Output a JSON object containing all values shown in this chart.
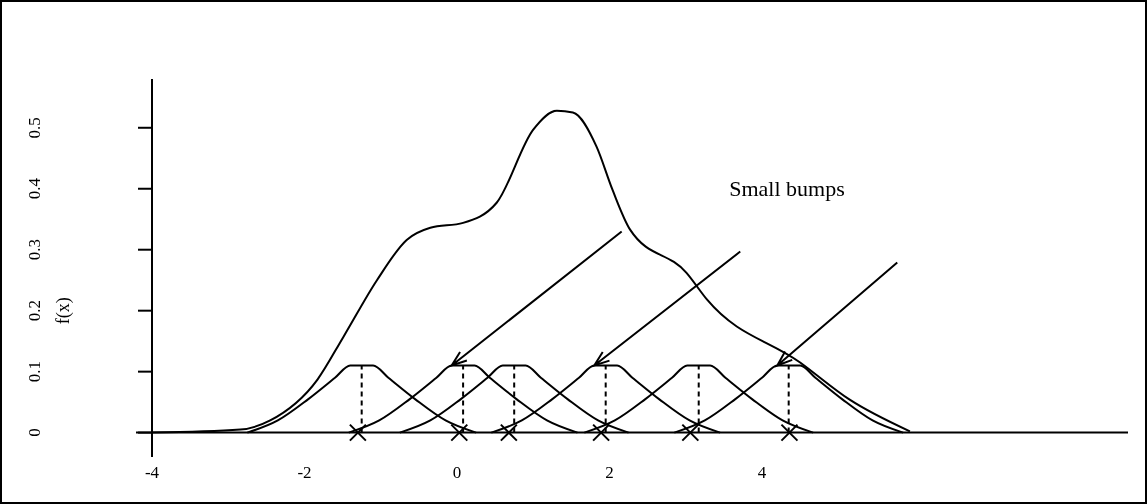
{
  "chart_data": {
    "type": "line",
    "ylabel": "f(x)",
    "annotations": [
      "Small bumps"
    ],
    "xlim": [
      -4,
      8.8
    ],
    "ylim": [
      -0.04,
      0.58
    ],
    "xticks": [
      -4,
      -2,
      0,
      2,
      4
    ],
    "yticks": [
      0,
      0.1,
      0.2,
      0.3,
      0.4,
      0.5
    ],
    "grid": false,
    "series": [
      {
        "color": "#000000",
        "line_style": "solid",
        "marker": "none",
        "x": [
          -4,
          -2.84,
          -2.45,
          -1.83,
          -1.49,
          -1.05,
          -0.66,
          -0.35,
          0.08,
          0.52,
          1.0,
          1.31,
          1.52,
          1.83,
          2.04,
          2.27,
          3.01,
          3.28,
          4.5,
          5.15,
          5.94
        ],
        "values": [
          0,
          0.005,
          0.02,
          0.087,
          0.157,
          0.25,
          0.316,
          0.336,
          0.344,
          0.377,
          0.497,
          0.528,
          0.525,
          0.469,
          0.398,
          0.333,
          0.262,
          0.218,
          0.115,
          0.054,
          0.002
        ]
      },
      {
        "color": "#000000",
        "line_style": "solid",
        "marker": "none",
        "x": [
          -2.75,
          -2.35,
          -1.95,
          -1.6,
          -1.4,
          -1.1,
          -0.9,
          -0.55,
          -0.15,
          0.25
        ],
        "values": [
          0,
          0.02,
          0.055,
          0.09,
          0.11,
          0.11,
          0.09,
          0.055,
          0.02,
          0
        ]
      },
      {
        "color": "#000000",
        "line_style": "solid",
        "marker": "none",
        "x": [
          -1.42,
          -1.02,
          -0.62,
          -0.27,
          -0.07,
          0.23,
          0.43,
          0.78,
          1.18,
          1.58
        ],
        "values": [
          0,
          0.02,
          0.055,
          0.09,
          0.11,
          0.11,
          0.09,
          0.055,
          0.02,
          0
        ]
      },
      {
        "color": "#000000",
        "line_style": "solid",
        "marker": "none",
        "x": [
          -0.75,
          -0.35,
          0.05,
          0.4,
          0.6,
          0.9,
          1.1,
          1.45,
          1.85,
          2.25
        ],
        "values": [
          0,
          0.02,
          0.055,
          0.09,
          0.11,
          0.11,
          0.09,
          0.055,
          0.02,
          0
        ]
      },
      {
        "color": "#000000",
        "line_style": "solid",
        "marker": "none",
        "x": [
          0.45,
          0.85,
          1.25,
          1.6,
          1.8,
          2.1,
          2.3,
          2.65,
          3.05,
          3.45
        ],
        "values": [
          0,
          0.02,
          0.055,
          0.09,
          0.11,
          0.11,
          0.09,
          0.055,
          0.02,
          0
        ]
      },
      {
        "color": "#000000",
        "line_style": "solid",
        "marker": "none",
        "x": [
          1.67,
          2.07,
          2.47,
          2.82,
          3.02,
          3.32,
          3.52,
          3.87,
          4.27,
          4.67
        ],
        "values": [
          0,
          0.02,
          0.055,
          0.09,
          0.11,
          0.11,
          0.09,
          0.055,
          0.02,
          0
        ]
      },
      {
        "color": "#000000",
        "line_style": "solid",
        "marker": "none",
        "x": [
          2.85,
          3.25,
          3.65,
          4.0,
          4.2,
          4.5,
          4.7,
          5.05,
          5.45,
          5.85
        ],
        "values": [
          0,
          0.02,
          0.055,
          0.09,
          0.11,
          0.11,
          0.09,
          0.055,
          0.02,
          0
        ]
      },
      {
        "color": "#000000",
        "line_style": "dashed",
        "marker": "none",
        "x": [
          -1.25,
          -1.25
        ],
        "values": [
          0,
          0.11
        ]
      },
      {
        "color": "#000000",
        "line_style": "dashed",
        "marker": "none",
        "x": [
          0.08,
          0.08
        ],
        "values": [
          0,
          0.11
        ]
      },
      {
        "color": "#000000",
        "line_style": "dashed",
        "marker": "none",
        "x": [
          0.75,
          0.75
        ],
        "values": [
          0,
          0.11
        ]
      },
      {
        "color": "#000000",
        "line_style": "dashed",
        "marker": "none",
        "x": [
          1.95,
          1.95
        ],
        "values": [
          0,
          0.11
        ]
      },
      {
        "color": "#000000",
        "line_style": "dashed",
        "marker": "none",
        "x": [
          3.17,
          3.17
        ],
        "values": [
          0,
          0.11
        ]
      },
      {
        "color": "#000000",
        "line_style": "dashed",
        "marker": "none",
        "x": [
          4.35,
          4.35
        ],
        "values": [
          0,
          0.11
        ]
      },
      {
        "type": "scatter",
        "color": "#000000",
        "marker": "cross",
        "x": [
          -1.3,
          0.03,
          0.68,
          1.89,
          3.06,
          4.36
        ],
        "values": [
          0,
          0,
          0,
          0,
          0,
          0
        ]
      }
    ]
  }
}
